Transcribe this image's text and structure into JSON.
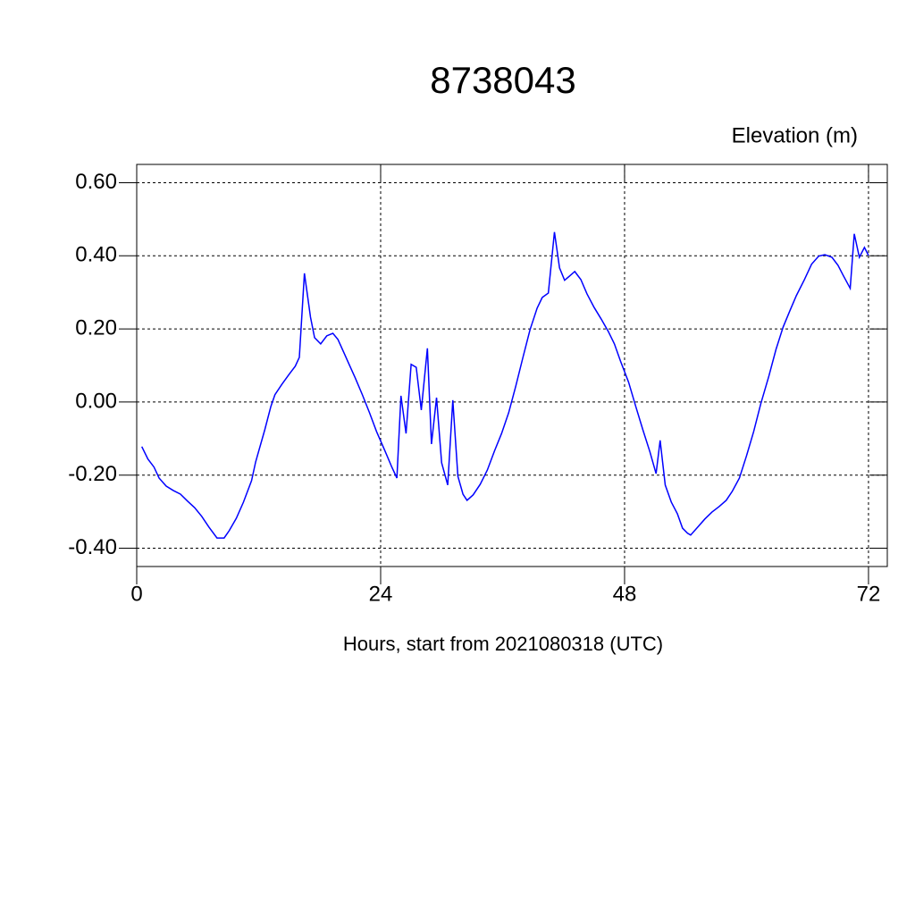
{
  "chart_data": {
    "type": "line",
    "title": "8738043",
    "subtitle": "Elevation (m)",
    "x_label": "Hours, start from 2021080318 (UTC)",
    "x": [
      0.5,
      1.1,
      1.7,
      2.2,
      2.9,
      3.6,
      4.3,
      5.0,
      5.7,
      6.4,
      7.1,
      7.9,
      8.6,
      9.1,
      9.8,
      10.5,
      11.3,
      11.7,
      12.6,
      13.2,
      13.6,
      14.3,
      15.0,
      15.6,
      16.0,
      16.5,
      17.1,
      17.5,
      18.1,
      18.7,
      19.3,
      19.8,
      20.4,
      20.9,
      21.5,
      22.2,
      22.9,
      23.6,
      24.4,
      25.1,
      25.6,
      26.0,
      26.5,
      27.0,
      27.5,
      28.0,
      28.6,
      29.0,
      29.5,
      30.0,
      30.6,
      31.1,
      31.6,
      32.1,
      32.5,
      33.1,
      33.8,
      34.5,
      35.2,
      35.9,
      36.6,
      37.3,
      38.0,
      38.7,
      39.4,
      39.9,
      40.5,
      41.1,
      41.6,
      42.1,
      42.6,
      43.1,
      43.7,
      44.3,
      45.0,
      45.7,
      46.4,
      47.0,
      47.6,
      48.4,
      49.1,
      49.8,
      50.5,
      51.1,
      51.5,
      52.0,
      52.6,
      53.2,
      53.7,
      54.2,
      54.5,
      55.2,
      55.9,
      56.6,
      57.3,
      58.0,
      58.6,
      59.3,
      60.0,
      60.7,
      61.4,
      62.2,
      62.9,
      63.6,
      64.3,
      64.9,
      65.7,
      66.4,
      67.1,
      67.7,
      68.4,
      69.0,
      69.5,
      70.2,
      70.6,
      71.1,
      71.6,
      72.0
    ],
    "series": [
      {
        "color": "#0000ff",
        "values": [
          -0.122,
          -0.156,
          -0.178,
          -0.208,
          -0.23,
          -0.242,
          -0.252,
          -0.271,
          -0.289,
          -0.313,
          -0.342,
          -0.372,
          -0.372,
          -0.352,
          -0.318,
          -0.274,
          -0.215,
          -0.164,
          -0.076,
          -0.012,
          0.02,
          0.049,
          0.076,
          0.098,
          0.122,
          0.352,
          0.232,
          0.176,
          0.159,
          0.181,
          0.188,
          0.171,
          0.134,
          0.103,
          0.066,
          0.02,
          -0.029,
          -0.081,
          -0.132,
          -0.178,
          -0.208,
          0.017,
          -0.086,
          0.103,
          0.095,
          -0.022,
          0.147,
          -0.115,
          0.012,
          -0.166,
          -0.227,
          0.005,
          -0.203,
          -0.252,
          -0.269,
          -0.254,
          -0.225,
          -0.186,
          -0.134,
          -0.086,
          -0.029,
          0.044,
          0.122,
          0.198,
          0.257,
          0.286,
          0.298,
          0.465,
          0.367,
          0.333,
          0.345,
          0.357,
          0.335,
          0.296,
          0.259,
          0.227,
          0.193,
          0.159,
          0.112,
          0.054,
          -0.012,
          -0.076,
          -0.137,
          -0.196,
          -0.105,
          -0.227,
          -0.274,
          -0.306,
          -0.345,
          -0.359,
          -0.364,
          -0.342,
          -0.32,
          -0.301,
          -0.286,
          -0.269,
          -0.244,
          -0.208,
          -0.147,
          -0.081,
          -0.005,
          0.071,
          0.144,
          0.205,
          0.252,
          0.291,
          0.335,
          0.377,
          0.399,
          0.403,
          0.396,
          0.374,
          0.347,
          0.311,
          0.46,
          0.396,
          0.423,
          0.401
        ]
      }
    ],
    "xlim": [
      0,
      73.85
    ],
    "ylim": [
      -0.45,
      0.65
    ],
    "xticks": [
      0,
      24,
      48,
      72
    ],
    "yticks": [
      {
        "value": -0.4,
        "label": "-0.40"
      },
      {
        "value": -0.2,
        "label": "-0.20"
      },
      {
        "value": 0,
        "label": "0.00"
      },
      {
        "value": 0.2,
        "label": "0.20"
      },
      {
        "value": 0.4,
        "label": "0.40"
      },
      {
        "value": 0.6,
        "label": "0.60"
      }
    ],
    "grid": true
  }
}
